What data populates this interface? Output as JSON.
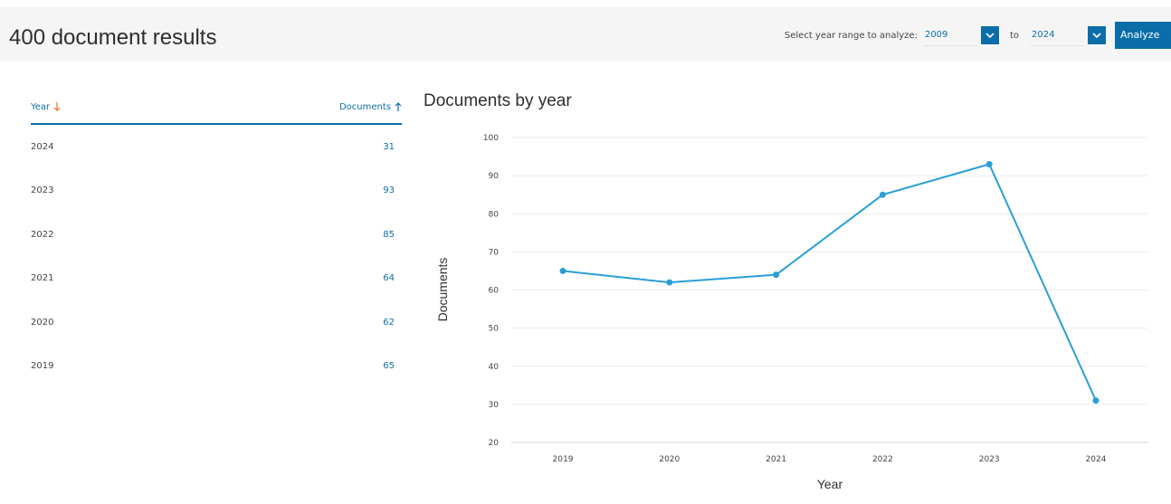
{
  "header": {
    "results_title": "400 document results",
    "range_label": "Select year range to analyze:",
    "from_year": "2009",
    "to_label": "to",
    "to_year": "2024",
    "analyze_label": "Analyze"
  },
  "table": {
    "col_year": "Year",
    "col_documents": "Documents",
    "rows": [
      {
        "year": "2024",
        "documents": "31"
      },
      {
        "year": "2023",
        "documents": "93"
      },
      {
        "year": "2022",
        "documents": "85"
      },
      {
        "year": "2021",
        "documents": "64"
      },
      {
        "year": "2020",
        "documents": "62"
      },
      {
        "year": "2019",
        "documents": "65"
      }
    ]
  },
  "colors": {
    "accent": "#0b6ea8",
    "sort_active": "#e9711c",
    "line": "#2a9fd6"
  },
  "chart_data": {
    "type": "line",
    "title": "Documents by year",
    "xlabel": "Year",
    "ylabel": "Documents",
    "categories": [
      "2019",
      "2020",
      "2021",
      "2022",
      "2023",
      "2024"
    ],
    "values": [
      65,
      62,
      64,
      85,
      93,
      31
    ],
    "ylim": [
      20,
      100
    ],
    "yticks": [
      20,
      30,
      40,
      50,
      60,
      70,
      80,
      90,
      100
    ],
    "grid": true
  }
}
